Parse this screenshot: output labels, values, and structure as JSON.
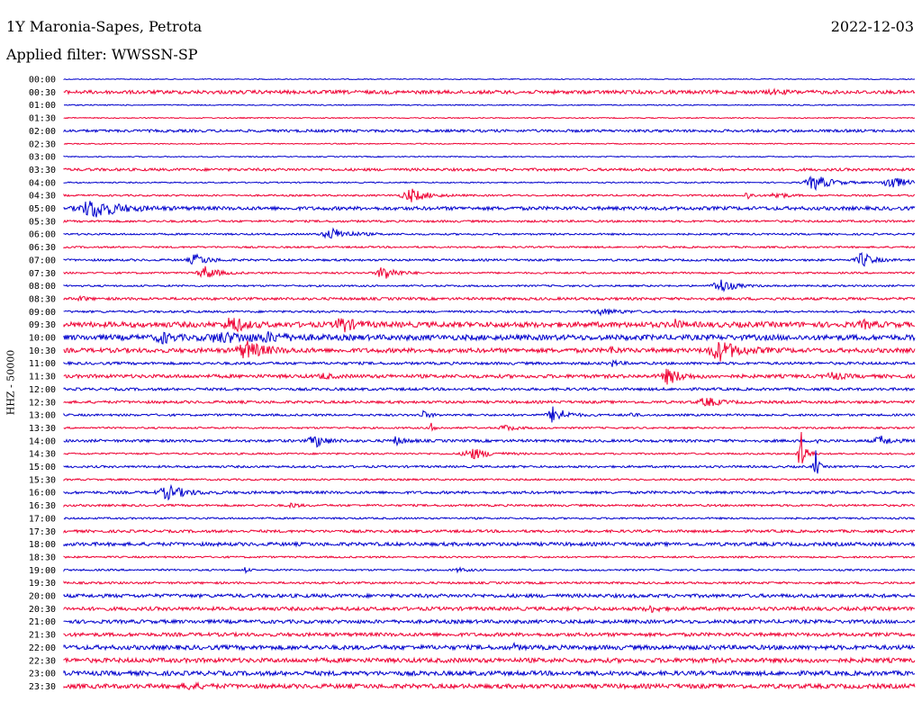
{
  "header": {
    "station": "1Y Maronia-Sapes, Petrota",
    "date": "2022-12-03",
    "filter": "Applied filter: WWSSN-SP"
  },
  "y_axis_label": "HHZ - 50000",
  "colors": {
    "even_hour": "#0000cc",
    "odd_half": "#ee0033"
  },
  "chart_data": {
    "type": "line",
    "title": "",
    "rows": [
      "00:00",
      "00:30",
      "01:00",
      "01:30",
      "02:00",
      "02:30",
      "03:00",
      "03:30",
      "04:00",
      "04:30",
      "05:00",
      "05:30",
      "06:00",
      "06:30",
      "07:00",
      "07:30",
      "08:00",
      "08:30",
      "09:00",
      "09:30",
      "10:00",
      "10:30",
      "11:00",
      "11:30",
      "12:00",
      "12:30",
      "13:00",
      "13:30",
      "14:00",
      "14:30",
      "15:00",
      "15:30",
      "16:00",
      "16:30",
      "17:00",
      "17:30",
      "18:00",
      "18:30",
      "19:00",
      "19:30",
      "20:00",
      "20:30",
      "21:00",
      "21:30",
      "22:00",
      "22:30",
      "23:00",
      "23:30"
    ],
    "noise": [
      0.5,
      2,
      0.6,
      0.6,
      1.5,
      0.6,
      0.6,
      1.5,
      0.7,
      1,
      2,
      1.2,
      1,
      1,
      1.2,
      1,
      1,
      1.5,
      1.2,
      3,
      3,
      2.5,
      1.5,
      2,
      1.5,
      1.5,
      1.2,
      1,
      1.5,
      1,
      1.2,
      1,
      1.5,
      1.2,
      1,
      1.5,
      2,
      1,
      1,
      1.2,
      2,
      2,
      2,
      2,
      2.5,
      2.5,
      2.5,
      2.5
    ],
    "events": [
      [],
      [
        [
          860,
          1.5,
          15
        ]
      ],
      [],
      [],
      [],
      [],
      [],
      [],
      [
        [
          906,
          8,
          20
        ],
        [
          990,
          8,
          15
        ]
      ],
      [
        [
          457,
          7,
          18
        ],
        [
          830,
          5,
          5
        ],
        [
          863,
          4,
          10
        ]
      ],
      [
        [
          105,
          10,
          28
        ]
      ],
      [],
      [
        [
          370,
          6,
          20
        ]
      ],
      [],
      [
        [
          218,
          6,
          14
        ],
        [
          958,
          8,
          12
        ]
      ],
      [
        [
          228,
          7,
          14
        ],
        [
          427,
          8,
          14
        ]
      ],
      [
        [
          800,
          8,
          14
        ]
      ],
      [
        [
          90,
          3,
          5
        ]
      ],
      [
        [
          670,
          3,
          20
        ]
      ],
      [
        [
          258,
          9,
          12
        ],
        [
          380,
          8,
          12
        ],
        [
          750,
          6,
          4
        ],
        [
          960,
          3,
          10
        ]
      ],
      [
        [
          180,
          6,
          10
        ],
        [
          250,
          4,
          40
        ],
        [
          300,
          3,
          20
        ]
      ],
      [
        [
          275,
          9,
          20
        ],
        [
          680,
          4,
          5
        ],
        [
          800,
          10,
          22
        ]
      ],
      [
        [
          680,
          3,
          8
        ]
      ],
      [
        [
          360,
          3,
          8
        ],
        [
          743,
          8,
          14
        ],
        [
          925,
          4,
          10
        ]
      ],
      [],
      [
        [
          785,
          5,
          14
        ]
      ],
      [
        [
          470,
          4,
          8
        ],
        [
          616,
          10,
          12
        ],
        [
          700,
          3,
          5
        ]
      ],
      [
        [
          480,
          6,
          4
        ],
        [
          562,
          3,
          12
        ]
      ],
      [
        [
          350,
          7,
          12
        ],
        [
          440,
          4,
          10
        ],
        [
          908,
          4,
          4
        ],
        [
          978,
          5,
          12
        ]
      ],
      [
        [
          525,
          6,
          18
        ],
        [
          889,
          30,
          5
        ]
      ],
      [
        [
          905,
          25,
          3
        ]
      ],
      [],
      [
        [
          188,
          7,
          20
        ]
      ],
      [
        [
          325,
          3,
          6
        ]
      ],
      [],
      [],
      [],
      [],
      [
        [
          272,
          4,
          3
        ],
        [
          510,
          2,
          10
        ]
      ],
      [],
      [],
      [
        [
          723,
          3,
          10
        ]
      ],
      [],
      [],
      [
        [
          572,
          3,
          4
        ]
      ],
      [],
      [],
      [
        [
          210,
          3,
          12
        ]
      ]
    ]
  }
}
